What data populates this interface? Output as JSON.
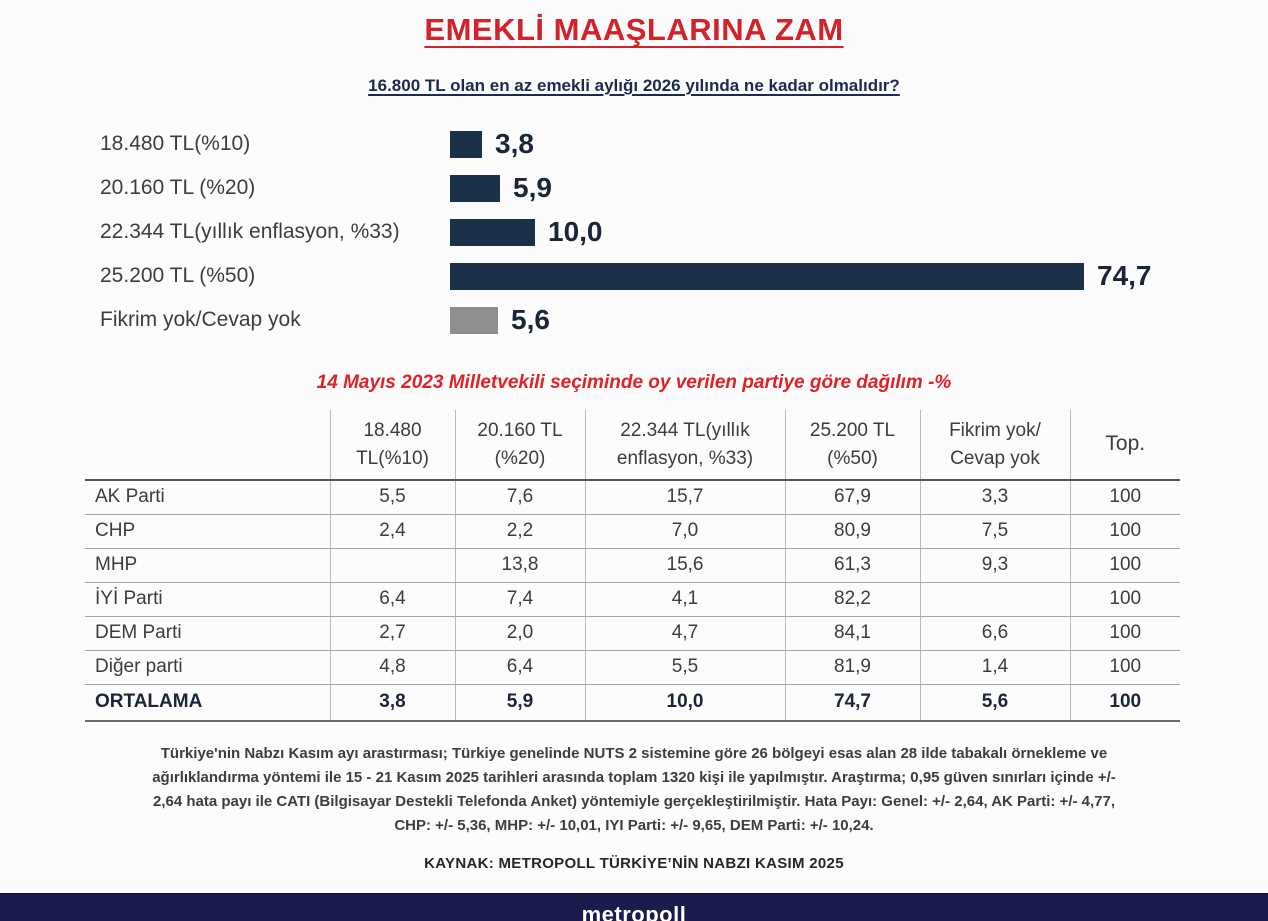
{
  "title": "EMEKLİ MAAŞLARINA ZAM",
  "question": "16.800 TL olan en az emekli aylığı 2026 yılında ne kadar olmalıdır?",
  "chart_data": {
    "type": "bar",
    "orientation": "horizontal",
    "title": "16.800 TL olan en az emekli aylığı 2026 yılında ne kadar olmalıdır?",
    "categories": [
      "18.480 TL(%10)",
      "20.160 TL (%20)",
      "22.344 TL(yıllık enflasyon, %33)",
      "25.200 TL (%50)",
      "Fikrim yok/Cevap yok"
    ],
    "values": [
      3.8,
      5.9,
      10.0,
      74.7,
      5.6
    ],
    "value_labels": [
      "3,8",
      "5,9",
      "10,0",
      "74,7",
      "5,6"
    ],
    "bar_colors": [
      "#1b3049",
      "#1b3049",
      "#1b3049",
      "#1b3049",
      "#8e8e8e"
    ],
    "xlim": [
      0,
      80
    ],
    "grid": false,
    "legend": false
  },
  "table": {
    "caption": "14 Mayıs 2023 Milletvekili seçiminde oy verilen partiye göre dağılım -%",
    "columns": [
      "",
      "18.480\nTL(%10)",
      "20.160 TL\n(%20)",
      "22.344 TL(yıllık\nenflasyon, %33)",
      "25.200 TL\n(%50)",
      "Fikrim yok/\nCevap yok",
      "Top."
    ],
    "rows": [
      {
        "label": "AK Parti",
        "values": [
          "5,5",
          "7,6",
          "15,7",
          "67,9",
          "3,3",
          "100"
        ],
        "bold": false
      },
      {
        "label": "CHP",
        "values": [
          "2,4",
          "2,2",
          "7,0",
          "80,9",
          "7,5",
          "100"
        ],
        "bold": false
      },
      {
        "label": "MHP",
        "values": [
          "",
          "13,8",
          "15,6",
          "61,3",
          "9,3",
          "100"
        ],
        "bold": false
      },
      {
        "label": "İYİ Parti",
        "values": [
          "6,4",
          "7,4",
          "4,1",
          "82,2",
          "",
          "100"
        ],
        "bold": false
      },
      {
        "label": "DEM Parti",
        "values": [
          "2,7",
          "2,0",
          "4,7",
          "84,1",
          "6,6",
          "100"
        ],
        "bold": false
      },
      {
        "label": "Diğer parti",
        "values": [
          "4,8",
          "6,4",
          "5,5",
          "81,9",
          "1,4",
          "100"
        ],
        "bold": false
      },
      {
        "label": "ORTALAMA",
        "values": [
          "3,8",
          "5,9",
          "10,0",
          "74,7",
          "5,6",
          "100"
        ],
        "bold": true
      }
    ]
  },
  "footnote": "Türkiye'nin Nabzı Kasım ayı arastırması; Türkiye genelinde NUTS 2 sistemine göre 26 bölgeyi esas alan 28 ilde tabakalı örnekleme ve\nağırlıklandırma yöntemi ile 15 - 21 Kasım 2025 tarihleri arasında toplam 1320 kişi ile yapılmıştır. Araştırma; 0,95 güven sınırları içinde +/-\n2,64 hata payı ile CATI (Bilgisayar Destekli Telefonda Anket) yöntemiyle gerçekleştirilmiştir. Hata Payı: Genel: +/- 2,64, AK Parti: +/- 4,77,\nCHP: +/- 5,36, MHP: +/- 10,01, IYI Parti: +/- 9,65, DEM Parti: +/- 10,24.",
  "source": "KAYNAK: METROPOLL TÜRKİYE’NİN NABZI KASIM 2025",
  "brand": "metropoll",
  "colors": {
    "title_red": "#d2232b",
    "caption_red": "#e02128",
    "navy": "#1b2b4d",
    "bar_navy": "#1b3049",
    "bar_gray": "#8e8e8e",
    "brand_bar": "#1a1d4c"
  }
}
